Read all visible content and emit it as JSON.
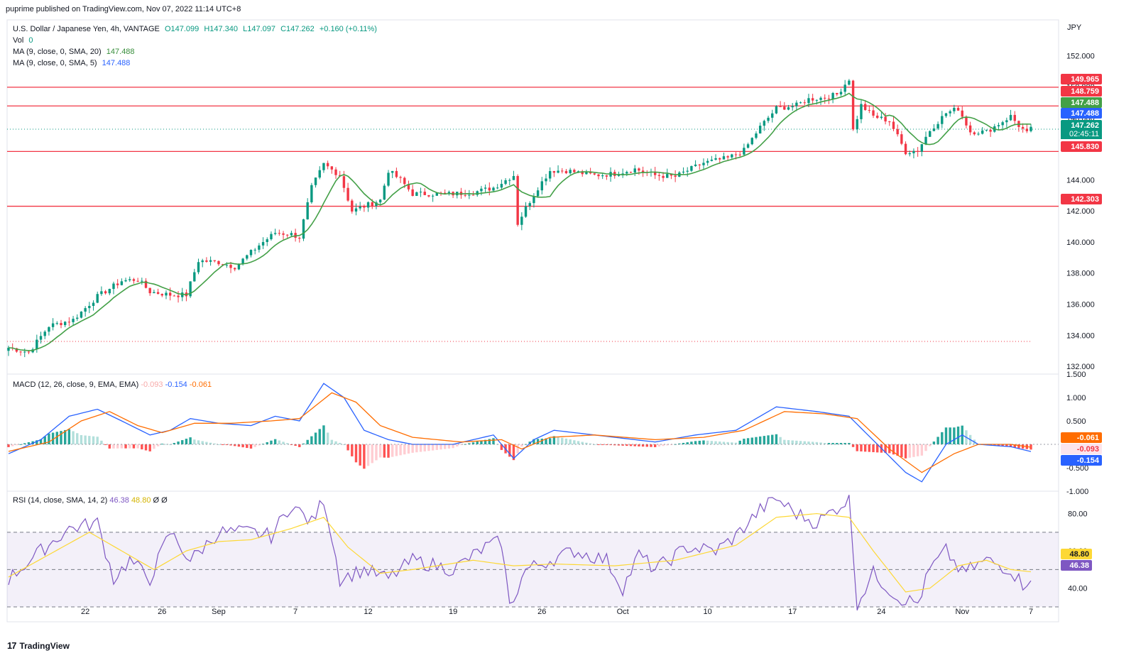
{
  "publisher": "puprime published on TradingView.com, Nov 07, 2022 11:14 UTC+8",
  "currency": "JPY",
  "legend": {
    "symbol": "U.S. Dollar / Japanese Yen, 4h, VANTAGE",
    "open": "O147.099",
    "high": "H147.340",
    "low": "L147.097",
    "close": "C147.262",
    "change": "+0.160 (+0.11%)",
    "vol_label": "Vol",
    "vol_value": "0",
    "ma20_label": "MA (9, close, 0, SMA, 20)",
    "ma20_value": "147.488",
    "ma5_label": "MA (9, close, 0, SMA, 5)",
    "ma5_value": "147.488"
  },
  "macd_legend": {
    "label": "MACD (12, 26, close, 9, EMA, EMA)",
    "hist": "-0.093",
    "macd": "-0.154",
    "signal": "-0.061"
  },
  "rsi_legend": {
    "label": "RSI (14, close, SMA, 14, 2)",
    "rsi": "46.38",
    "sma": "48.80",
    "x1": "Ø",
    "x2": "Ø"
  },
  "footer": {
    "logo": "17",
    "brand": "TradingView"
  },
  "colors": {
    "up": "#089981",
    "down": "#f23645",
    "line_red": "#f23645",
    "ma": "#43a047",
    "macd": "#2962ff",
    "signal": "#ff6d00",
    "rsi": "#7e57c2",
    "rsi_sma": "#fdd835"
  },
  "chart_data": [
    {
      "type": "line",
      "title": "U.S. Dollar / Japanese Yen, 4h, VANTAGE",
      "ylim": [
        131.5,
        154.3
      ],
      "y_ticks": [
        132,
        134,
        136,
        138,
        140,
        142,
        144,
        146,
        148,
        150,
        152
      ],
      "y_tick_labels": [
        "132.000",
        "134.000",
        "136.000",
        "138.000",
        "140.000",
        "142.000",
        "144.000",
        "146.000",
        "148.000",
        "150.000",
        "152.000"
      ],
      "x_tick_labels": [
        "22",
        "26",
        "Sep",
        "7",
        "12",
        "19",
        "26",
        "Oct",
        "10",
        "17",
        "24",
        "Nov",
        "7"
      ],
      "horizontal_lines": [
        149.965,
        148.759,
        145.83,
        142.303
      ],
      "price_labels": [
        {
          "value": 149.965,
          "text": "149.965",
          "color": "#f23645"
        },
        {
          "value": 148.759,
          "text": "148.759",
          "color": "#f23645"
        },
        {
          "value": 147.488,
          "text": "147.488",
          "color": "#43a047"
        },
        {
          "value": 147.488,
          "text": "147.488",
          "color": "#2962ff"
        },
        {
          "value": 147.262,
          "text": "147.262",
          "color": "#089981"
        },
        {
          "value": 145.83,
          "text": "145.830",
          "color": "#f23645"
        },
        {
          "value": 142.303,
          "text": "142.303",
          "color": "#f23645"
        }
      ],
      "countdown": "02:45:11",
      "last_price": 147.262,
      "close_anchors": [
        [
          0,
          133.2
        ],
        [
          5,
          132.9
        ],
        [
          10,
          134.6
        ],
        [
          16,
          135.0
        ],
        [
          22,
          136.5
        ],
        [
          28,
          137.5
        ],
        [
          32,
          137.6
        ],
        [
          35,
          136.8
        ],
        [
          40,
          136.6
        ],
        [
          44,
          136.6
        ],
        [
          47,
          138.8
        ],
        [
          52,
          138.7
        ],
        [
          56,
          138.4
        ],
        [
          62,
          139.8
        ],
        [
          66,
          140.6
        ],
        [
          70,
          140.5
        ],
        [
          72,
          140.3
        ],
        [
          75,
          143.5
        ],
        [
          78,
          145.0
        ],
        [
          82,
          144.3
        ],
        [
          85,
          142.0
        ],
        [
          88,
          142.3
        ],
        [
          92,
          142.7
        ],
        [
          94,
          144.6
        ],
        [
          97,
          144.0
        ],
        [
          100,
          143.1
        ],
        [
          105,
          143.1
        ],
        [
          110,
          143.1
        ],
        [
          115,
          143.2
        ],
        [
          120,
          143.5
        ],
        [
          125,
          144.3
        ],
        [
          126,
          141.2
        ],
        [
          128,
          142.2
        ],
        [
          131,
          143.5
        ],
        [
          134,
          144.6
        ],
        [
          138,
          144.6
        ],
        [
          145,
          144.3
        ],
        [
          150,
          144.4
        ],
        [
          155,
          144.7
        ],
        [
          160,
          144.3
        ],
        [
          165,
          144.2
        ],
        [
          168,
          144.6
        ],
        [
          172,
          145.1
        ],
        [
          178,
          145.4
        ],
        [
          182,
          145.9
        ],
        [
          186,
          147.4
        ],
        [
          190,
          148.6
        ],
        [
          195,
          148.8
        ],
        [
          198,
          149.2
        ],
        [
          202,
          149.3
        ],
        [
          205,
          149.5
        ],
        [
          208,
          150.5
        ],
        [
          209,
          147.2
        ],
        [
          211,
          148.8
        ],
        [
          214,
          148.1
        ],
        [
          218,
          147.8
        ],
        [
          222,
          145.8
        ],
        [
          225,
          145.9
        ],
        [
          228,
          147.2
        ],
        [
          232,
          148.3
        ],
        [
          235,
          148.6
        ],
        [
          238,
          147.1
        ],
        [
          242,
          147.1
        ],
        [
          245,
          147.6
        ],
        [
          248,
          148.1
        ],
        [
          250,
          147.5
        ],
        [
          252,
          147.0
        ],
        [
          253,
          147.26
        ]
      ],
      "ma_note": "moving average overlay"
    },
    {
      "type": "line",
      "title": "MACD (12, 26, close, 9, EMA, EMA)",
      "ylim": [
        -1.0,
        1.5
      ],
      "y_tick_labels": [
        "1.500",
        "1.000",
        "0.500",
        "-0.500",
        "-1.000"
      ],
      "series": [
        {
          "name": "MACD",
          "values": [
            [
              0,
              -0.2
            ],
            [
              8,
              0.1
            ],
            [
              15,
              0.6
            ],
            [
              22,
              0.75
            ],
            [
              28,
              0.5
            ],
            [
              35,
              0.2
            ],
            [
              40,
              0.3
            ],
            [
              45,
              0.55
            ],
            [
              52,
              0.45
            ],
            [
              60,
              0.4
            ],
            [
              66,
              0.6
            ],
            [
              72,
              0.5
            ],
            [
              78,
              1.3
            ],
            [
              83,
              1.0
            ],
            [
              88,
              0.3
            ],
            [
              94,
              0.1
            ],
            [
              100,
              0.0
            ],
            [
              110,
              0.0
            ],
            [
              120,
              0.2
            ],
            [
              125,
              -0.3
            ],
            [
              130,
              0.1
            ],
            [
              135,
              0.3
            ],
            [
              145,
              0.2
            ],
            [
              160,
              0.05
            ],
            [
              170,
              0.2
            ],
            [
              180,
              0.3
            ],
            [
              190,
              0.8
            ],
            [
              200,
              0.7
            ],
            [
              208,
              0.6
            ],
            [
              215,
              0.0
            ],
            [
              222,
              -0.6
            ],
            [
              226,
              -0.8
            ],
            [
              232,
              0.0
            ],
            [
              236,
              0.2
            ],
            [
              240,
              0.0
            ],
            [
              248,
              -0.05
            ],
            [
              253,
              -0.154
            ]
          ]
        },
        {
          "name": "Signal",
          "values": [
            [
              0,
              -0.15
            ],
            [
              10,
              0.05
            ],
            [
              18,
              0.5
            ],
            [
              25,
              0.7
            ],
            [
              32,
              0.4
            ],
            [
              38,
              0.25
            ],
            [
              46,
              0.45
            ],
            [
              55,
              0.45
            ],
            [
              65,
              0.5
            ],
            [
              72,
              0.55
            ],
            [
              80,
              1.1
            ],
            [
              86,
              0.9
            ],
            [
              92,
              0.4
            ],
            [
              100,
              0.15
            ],
            [
              112,
              0.05
            ],
            [
              122,
              0.1
            ],
            [
              127,
              -0.1
            ],
            [
              134,
              0.15
            ],
            [
              145,
              0.2
            ],
            [
              160,
              0.1
            ],
            [
              172,
              0.15
            ],
            [
              182,
              0.3
            ],
            [
              192,
              0.7
            ],
            [
              202,
              0.65
            ],
            [
              210,
              0.55
            ],
            [
              218,
              -0.1
            ],
            [
              226,
              -0.6
            ],
            [
              234,
              -0.2
            ],
            [
              240,
              0.0
            ],
            [
              248,
              0.0
            ],
            [
              253,
              -0.061
            ]
          ]
        }
      ],
      "histogram_last": -0.093
    },
    {
      "type": "line",
      "title": "RSI (14, close, SMA, 14, 2)",
      "ylim": [
        22,
        92
      ],
      "y_tick_labels": [
        "80.00",
        "60.00",
        "40.00"
      ],
      "band": [
        30,
        70
      ],
      "mid": 50,
      "series": [
        {
          "name": "RSI",
          "values": [
            [
              0,
              45
            ],
            [
              8,
              60
            ],
            [
              15,
              72
            ],
            [
              22,
              75
            ],
            [
              26,
              45
            ],
            [
              30,
              55
            ],
            [
              35,
              45
            ],
            [
              40,
              70
            ],
            [
              45,
              55
            ],
            [
              52,
              70
            ],
            [
              60,
              70
            ],
            [
              65,
              68
            ],
            [
              70,
              85
            ],
            [
              75,
              75
            ],
            [
              78,
              88
            ],
            [
              80,
              68
            ],
            [
              82,
              45
            ],
            [
              88,
              50
            ],
            [
              94,
              45
            ],
            [
              100,
              55
            ],
            [
              110,
              50
            ],
            [
              118,
              62
            ],
            [
              122,
              65
            ],
            [
              124,
              30
            ],
            [
              128,
              50
            ],
            [
              134,
              55
            ],
            [
              140,
              60
            ],
            [
              148,
              55
            ],
            [
              152,
              40
            ],
            [
              156,
              58
            ],
            [
              160,
              50
            ],
            [
              168,
              62
            ],
            [
              175,
              60
            ],
            [
              180,
              68
            ],
            [
              186,
              82
            ],
            [
              190,
              88
            ],
            [
              195,
              80
            ],
            [
              200,
              75
            ],
            [
              208,
              88
            ],
            [
              210,
              32
            ],
            [
              214,
              48
            ],
            [
              220,
              35
            ],
            [
              225,
              32
            ],
            [
              228,
              50
            ],
            [
              232,
              60
            ],
            [
              236,
              48
            ],
            [
              242,
              55
            ],
            [
              248,
              50
            ],
            [
              251,
              42
            ],
            [
              253,
              46.38
            ]
          ]
        },
        {
          "name": "RSI SMA",
          "values": [
            [
              0,
              46
            ],
            [
              10,
              58
            ],
            [
              20,
              70
            ],
            [
              28,
              60
            ],
            [
              36,
              50
            ],
            [
              44,
              60
            ],
            [
              52,
              65
            ],
            [
              60,
              66
            ],
            [
              70,
              72
            ],
            [
              78,
              78
            ],
            [
              84,
              62
            ],
            [
              92,
              48
            ],
            [
              100,
              50
            ],
            [
              115,
              55
            ],
            [
              125,
              52
            ],
            [
              135,
              53
            ],
            [
              150,
              52
            ],
            [
              165,
              55
            ],
            [
              180,
              63
            ],
            [
              190,
              78
            ],
            [
              200,
              80
            ],
            [
              208,
              78
            ],
            [
              214,
              60
            ],
            [
              222,
              38
            ],
            [
              228,
              40
            ],
            [
              235,
              52
            ],
            [
              242,
              55
            ],
            [
              248,
              50
            ],
            [
              253,
              48.8
            ]
          ]
        }
      ]
    }
  ]
}
